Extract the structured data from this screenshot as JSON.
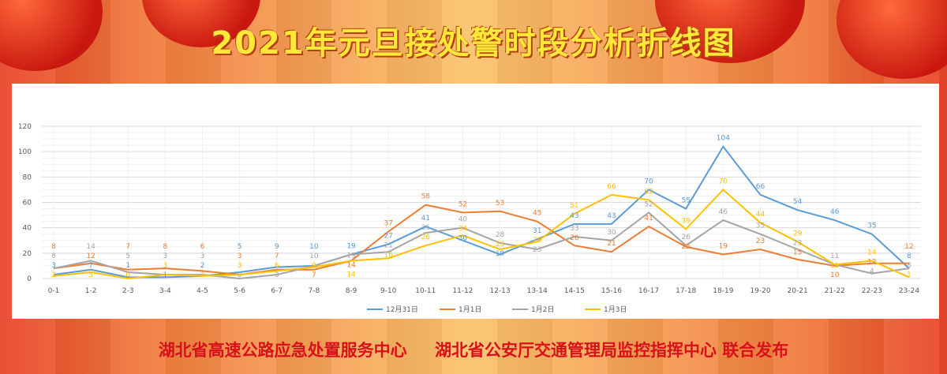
{
  "poster": {
    "title": "2021年元旦接处警时段分析折线图",
    "footer_org1": "湖北省高速公路应急处置服务中心",
    "footer_org2": "湖北省公安厅交通管理局监控指挥中心 联合发布"
  },
  "chart_data": {
    "type": "line",
    "title": "",
    "xlabel": "",
    "ylabel": "",
    "ylim": [
      0,
      120
    ],
    "yticks": [
      "0",
      "20",
      "40",
      "60",
      "80",
      "100",
      "120"
    ],
    "grid": true,
    "legend_position": "bottom",
    "categories": [
      "0-1",
      "1-2",
      "2-3",
      "3-4",
      "4-5",
      "5-6",
      "6-7",
      "7-8",
      "8-9",
      "9-10",
      "10-11",
      "11-12",
      "12-13",
      "13-14",
      "14-15",
      "15-16",
      "16-17",
      "17-18",
      "18-19",
      "19-20",
      "20-21",
      "21-22",
      "22-23",
      "23-24"
    ],
    "series": [
      {
        "name": "12月31日",
        "color": "#5b9bd5",
        "values": [
          3,
          7,
          1,
          1,
          2,
          5,
          9,
          10,
          19,
          27,
          41,
          30,
          19,
          31,
          43,
          43,
          70,
          55,
          104,
          66,
          54,
          46,
          35,
          8
        ]
      },
      {
        "name": "1月1日",
        "color": "#ed7d31",
        "values": [
          8,
          12,
          7,
          8,
          6,
          3,
          7,
          7,
          14,
          37,
          58,
          52,
          53,
          45,
          26,
          21,
          41,
          25,
          19,
          23,
          15,
          10,
          12,
          12
        ]
      },
      {
        "name": "1月2日",
        "color": "#a5a5a5",
        "values": [
          8,
          14,
          5,
          3,
          3,
          0,
          3,
          10,
          19,
          21,
          36,
          40,
          28,
          23,
          33,
          30,
          52,
          26,
          46,
          35,
          23,
          11,
          4,
          8
        ]
      },
      {
        "name": "1月3日",
        "color": "#ffc000",
        "values": [
          2,
          5,
          0,
          3,
          2,
          3,
          6,
          9,
          14,
          16,
          26,
          34,
          23,
          29,
          51,
          66,
          62,
          39,
          70,
          44,
          29,
          11,
          14,
          1
        ]
      }
    ]
  }
}
